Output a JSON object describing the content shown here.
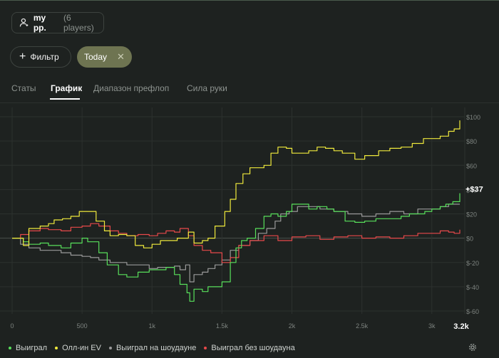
{
  "players": {
    "name": "my pp.",
    "count": "(6 players)"
  },
  "filter": {
    "label": "Фильтр",
    "plus": "+"
  },
  "chip": {
    "label": "Today",
    "close": "✕"
  },
  "tabs": [
    {
      "label": "Статы",
      "active": false
    },
    {
      "label": "График",
      "active": true
    },
    {
      "label": "Диапазон префлоп",
      "active": false
    },
    {
      "label": "Сила руки",
      "active": false
    }
  ],
  "colors": {
    "won": "#58e05b",
    "allin_ev": "#f0ea3c",
    "showdown": "#9a9a9a",
    "non_showdown": "#e8494a",
    "accent_chip": "#6e7451"
  },
  "chart_data": {
    "type": "line",
    "x_ticks": [
      "0",
      "500",
      "1k",
      "1.5k",
      "2k",
      "2.5k",
      "3k"
    ],
    "x_end_label": "3.2k",
    "xlim": [
      0,
      3200
    ],
    "y_ticks": [
      "$100",
      "$80",
      "$60",
      "$40",
      "$20",
      "$0",
      "$-20",
      "$-40",
      "$-60"
    ],
    "ylim": [
      -60,
      100
    ],
    "end_label": "+$37",
    "grid": true,
    "legend_position": "bottom",
    "series": [
      {
        "name": "Выиграл",
        "color": "#58e05b",
        "x": [
          0,
          80,
          120,
          200,
          260,
          350,
          420,
          500,
          540,
          620,
          680,
          760,
          820,
          900,
          980,
          1040,
          1100,
          1160,
          1200,
          1250,
          1270,
          1300,
          1360,
          1400,
          1450,
          1500,
          1560,
          1600,
          1640,
          1680,
          1740,
          1800,
          1850,
          1900,
          1960,
          2000,
          2060,
          2120,
          2180,
          2250,
          2300,
          2380,
          2450,
          2520,
          2600,
          2700,
          2780,
          2840,
          2900,
          2950,
          3000,
          3060,
          3100,
          3150,
          3200
        ],
        "y": [
          0,
          -3,
          -5,
          -4,
          -6,
          -8,
          -4,
          0,
          -3,
          -12,
          -22,
          -30,
          -32,
          -28,
          -26,
          -26,
          -24,
          -30,
          -38,
          -45,
          -52,
          -42,
          -44,
          -40,
          -40,
          -36,
          -20,
          -8,
          -2,
          0,
          8,
          18,
          20,
          18,
          22,
          28,
          28,
          24,
          26,
          24,
          22,
          14,
          13,
          14,
          16,
          16,
          18,
          20,
          20,
          22,
          24,
          26,
          28,
          30,
          37
        ]
      },
      {
        "name": "Олл-ин EV",
        "color": "#f0ea3c",
        "x": [
          0,
          80,
          120,
          200,
          260,
          300,
          360,
          420,
          480,
          540,
          600,
          660,
          700,
          760,
          820,
          880,
          940,
          1000,
          1060,
          1120,
          1180,
          1230,
          1260,
          1300,
          1360,
          1400,
          1450,
          1520,
          1560,
          1600,
          1650,
          1700,
          1760,
          1800,
          1850,
          1900,
          1960,
          2000,
          2060,
          2120,
          2180,
          2240,
          2300,
          2360,
          2450,
          2520,
          2580,
          2620,
          2700,
          2780,
          2860,
          2940,
          3000,
          3060,
          3120,
          3160,
          3200
        ],
        "y": [
          0,
          -6,
          8,
          10,
          12,
          15,
          16,
          18,
          22,
          22,
          14,
          6,
          2,
          3,
          2,
          -6,
          -8,
          -5,
          -2,
          -2,
          0,
          0,
          5,
          -4,
          -2,
          0,
          10,
          22,
          32,
          45,
          53,
          58,
          58,
          60,
          70,
          75,
          74,
          70,
          70,
          72,
          75,
          74,
          72,
          70,
          65,
          68,
          68,
          72,
          74,
          75,
          78,
          82,
          82,
          84,
          88,
          90,
          97
        ]
      },
      {
        "name": "Выиграл на шоудауне",
        "color": "#9a9a9a",
        "x": [
          0,
          60,
          120,
          200,
          260,
          350,
          420,
          500,
          560,
          620,
          700,
          760,
          820,
          900,
          980,
          1040,
          1100,
          1160,
          1200,
          1240,
          1270,
          1300,
          1360,
          1400,
          1450,
          1500,
          1560,
          1620,
          1700,
          1760,
          1820,
          1880,
          1920,
          1980,
          2040,
          2100,
          2200,
          2300,
          2400,
          2500,
          2600,
          2700,
          2800,
          2900,
          2980,
          3060,
          3120,
          3200
        ],
        "y": [
          0,
          -5,
          -8,
          -10,
          -10,
          -12,
          -14,
          -15,
          -16,
          -18,
          -20,
          -20,
          -22,
          -22,
          -25,
          -24,
          -24,
          -23,
          -26,
          -22,
          -36,
          -30,
          -28,
          -25,
          -22,
          -18,
          -10,
          -6,
          -2,
          4,
          8,
          14,
          20,
          22,
          26,
          26,
          24,
          22,
          20,
          18,
          20,
          22,
          20,
          24,
          24,
          26,
          28,
          28
        ]
      },
      {
        "name": "Выиграл без шоудауна",
        "color": "#e8494a",
        "x": [
          0,
          60,
          120,
          200,
          260,
          350,
          420,
          500,
          560,
          620,
          700,
          760,
          820,
          900,
          980,
          1040,
          1100,
          1160,
          1200,
          1260,
          1300,
          1360,
          1420,
          1500,
          1560,
          1620,
          1700,
          1800,
          1900,
          2000,
          2100,
          2200,
          2300,
          2400,
          2500,
          2600,
          2700,
          2800,
          2900,
          3000,
          3060,
          3120,
          3160,
          3200
        ],
        "y": [
          0,
          3,
          6,
          8,
          7,
          6,
          9,
          10,
          12,
          10,
          6,
          4,
          2,
          3,
          2,
          4,
          6,
          5,
          8,
          2,
          -6,
          -10,
          -12,
          -20,
          -16,
          -6,
          -2,
          2,
          -2,
          1,
          2,
          -1,
          1,
          2,
          0,
          1,
          0,
          2,
          4,
          4,
          6,
          5,
          4,
          7
        ]
      }
    ]
  }
}
